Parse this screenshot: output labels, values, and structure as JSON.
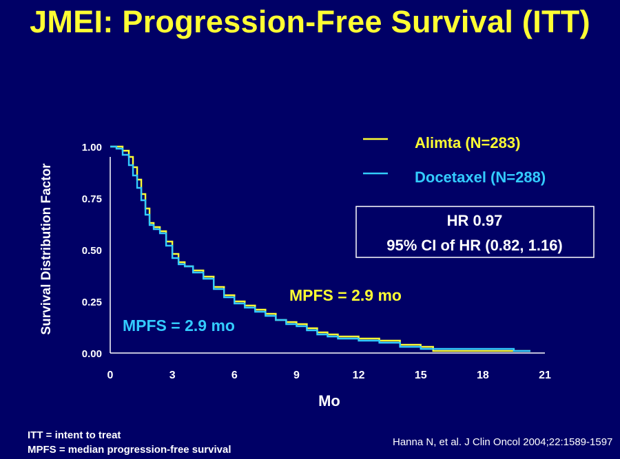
{
  "slide_title": "JMEI:  Progression-Free Survival (ITT)",
  "footnotes": [
    "ITT = intent to treat",
    "MPFS = median progression-free survival"
  ],
  "citation": "Hanna N, et al. J Clin Oncol 2004;22:1589-1597",
  "colors": {
    "background": "#000066",
    "title": "#ffff33",
    "alimta": "#ffff33",
    "docetaxel": "#33ccff",
    "text": "#ffffff"
  },
  "chart_data": {
    "type": "line",
    "xlabel": "Mo",
    "ylabel": "Survival Distribution Factor",
    "xlim": [
      0,
      21
    ],
    "ylim": [
      0,
      1
    ],
    "xticks": [
      0,
      3,
      6,
      9,
      12,
      15,
      18,
      21
    ],
    "yticks": [
      0,
      0.25,
      0.5,
      0.75,
      1.0
    ],
    "ytick_labels": [
      "0.00",
      "0.25",
      "0.50",
      "0.75",
      "1.00"
    ],
    "legend_position": "top-right",
    "step": true,
    "series": [
      {
        "name": "Alimta (N=283)",
        "color": "#ffff33",
        "x": [
          0,
          0.3,
          0.6,
          0.9,
          1.1,
          1.3,
          1.5,
          1.7,
          1.9,
          2.1,
          2.4,
          2.7,
          3.0,
          3.3,
          3.6,
          4.0,
          4.5,
          5.0,
          5.5,
          6.0,
          6.5,
          7.0,
          7.5,
          8.0,
          8.5,
          9.0,
          9.5,
          10.0,
          10.5,
          11.0,
          12.0,
          13.0,
          14.0,
          15.0,
          15.6,
          16.5,
          17.5,
          18.5,
          19.5,
          20.3
        ],
        "y": [
          1.0,
          1.0,
          0.98,
          0.95,
          0.9,
          0.84,
          0.77,
          0.7,
          0.63,
          0.61,
          0.59,
          0.54,
          0.48,
          0.44,
          0.42,
          0.4,
          0.37,
          0.32,
          0.28,
          0.25,
          0.23,
          0.21,
          0.19,
          0.16,
          0.15,
          0.14,
          0.12,
          0.1,
          0.09,
          0.08,
          0.07,
          0.06,
          0.04,
          0.03,
          0.01,
          0.01,
          0.01,
          0.01,
          0.01,
          0.01
        ]
      },
      {
        "name": "Docetaxel (N=288)",
        "color": "#33ccff",
        "x": [
          0,
          0.3,
          0.6,
          0.9,
          1.1,
          1.3,
          1.5,
          1.7,
          1.9,
          2.1,
          2.4,
          2.7,
          3.0,
          3.3,
          3.6,
          4.0,
          4.5,
          5.0,
          5.5,
          6.0,
          6.5,
          7.0,
          7.5,
          8.0,
          8.5,
          9.0,
          9.5,
          10.0,
          10.5,
          11.0,
          12.0,
          13.0,
          14.0,
          15.0,
          15.6,
          16.5,
          17.5,
          18.5,
          19.5,
          20.3
        ],
        "y": [
          1.0,
          0.99,
          0.96,
          0.91,
          0.86,
          0.8,
          0.74,
          0.67,
          0.62,
          0.6,
          0.58,
          0.52,
          0.46,
          0.43,
          0.42,
          0.39,
          0.36,
          0.31,
          0.27,
          0.24,
          0.22,
          0.2,
          0.18,
          0.16,
          0.14,
          0.13,
          0.11,
          0.09,
          0.08,
          0.07,
          0.06,
          0.05,
          0.03,
          0.02,
          0.02,
          0.02,
          0.02,
          0.02,
          0.01,
          0.01
        ]
      }
    ],
    "hr_box": [
      "HR   0.97",
      "95% CI of HR (0.82, 1.16)"
    ],
    "annotations": [
      {
        "text": "MPFS = 2.9 mo",
        "color": "#ffff33",
        "series": "Alimta (N=283)"
      },
      {
        "text": "MPFS = 2.9 mo",
        "color": "#33ccff",
        "series": "Docetaxel (N=288)"
      }
    ]
  }
}
